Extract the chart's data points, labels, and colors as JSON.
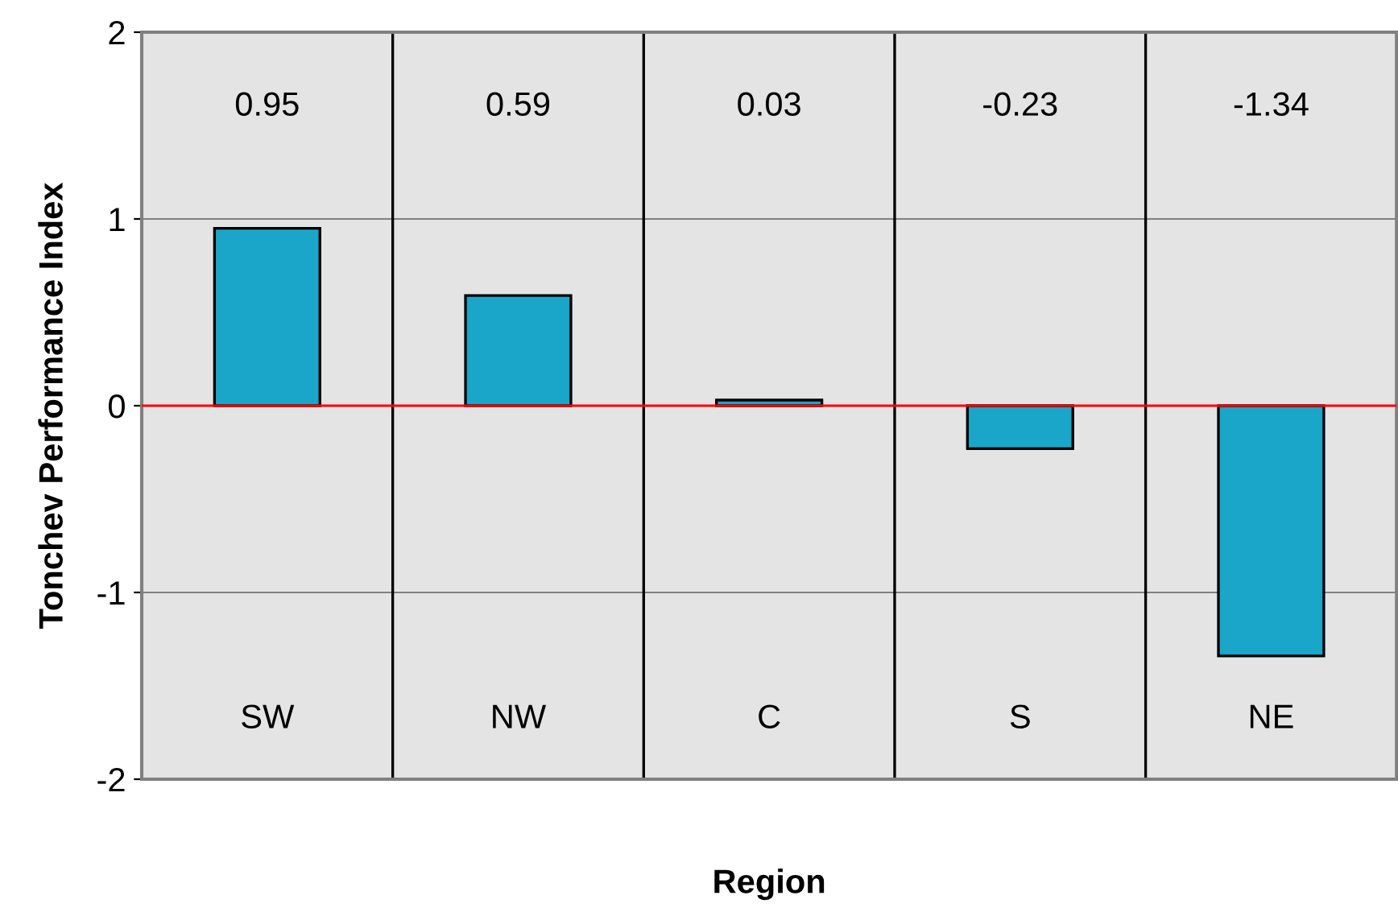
{
  "chart_data": {
    "type": "bar",
    "xlabel": "Region",
    "ylabel": "Tonchev Performance Index",
    "categories": [
      "SW",
      "NW",
      "C",
      "S",
      "NE"
    ],
    "values": [
      0.95,
      0.59,
      0.03,
      -0.23,
      -1.34
    ],
    "color": "#1aa6c8",
    "ylim": [
      -2,
      2
    ],
    "yticks": [
      -2,
      -1,
      0,
      1,
      2
    ],
    "grid": "y",
    "annotations": [
      "0.95",
      "0.59",
      "0.03",
      "-0.23",
      "-1.34"
    ],
    "ref_lines": [
      {
        "axis": "y",
        "value": 0,
        "color": "#ff0000"
      }
    ]
  }
}
